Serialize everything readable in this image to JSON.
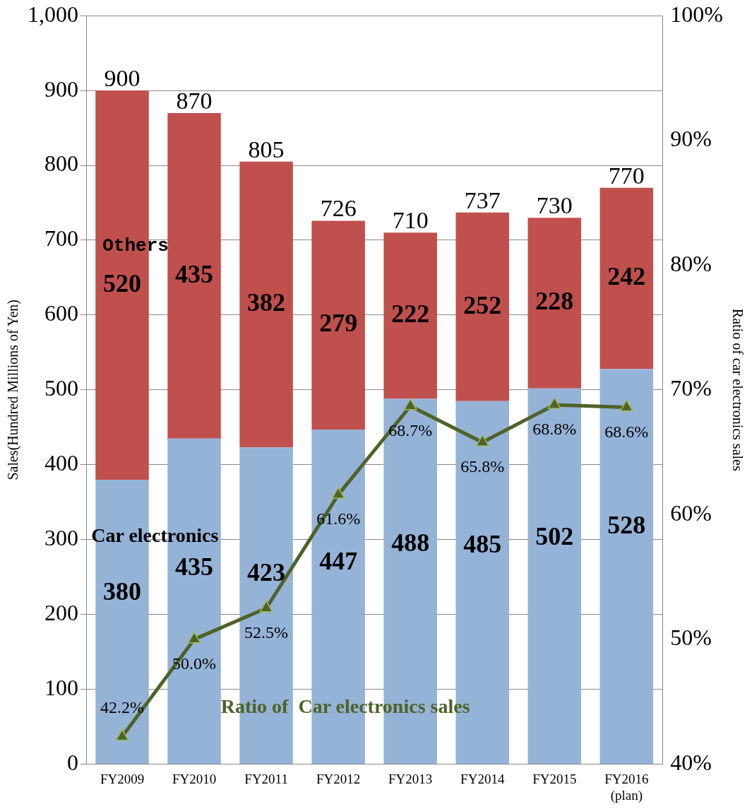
{
  "chart_data": {
    "type": "bar",
    "stacked": true,
    "ylabel": "Sales(Hundred Millions of Yen)",
    "y2label": "Ratio of car electronics sales",
    "categories": [
      "FY2009",
      "FY2010",
      "FY2011",
      "FY2012",
      "FY2013",
      "FY2014",
      "FY2015",
      "FY2016\n(plan)"
    ],
    "series": [
      {
        "name": "Car electronics",
        "color": "#95b3d7",
        "values": [
          380,
          435,
          423,
          447,
          488,
          485,
          502,
          528
        ],
        "value_labels": [
          "380",
          "435",
          "423",
          "447",
          "488",
          "485",
          "502",
          "528"
        ]
      },
      {
        "name": "Others",
        "color": "#c0504d",
        "values": [
          520,
          435,
          382,
          279,
          222,
          252,
          228,
          242
        ],
        "value_labels": [
          "520",
          "435",
          "382",
          "279",
          "222",
          "252",
          "228",
          "242"
        ]
      },
      {
        "name": "Ratio of  Car electronics sales",
        "type": "line",
        "axis": "y2",
        "color": "#4f6228",
        "marker": "triangle",
        "values": [
          42.2,
          50.0,
          52.5,
          61.6,
          68.7,
          65.8,
          68.8,
          68.6
        ],
        "value_labels": [
          "42.2%",
          "50.0%",
          "52.5%",
          "61.6%",
          "68.7%",
          "65.8%",
          "68.8%",
          "68.6%"
        ]
      }
    ],
    "totals": [
      "900",
      "870",
      "805",
      "726",
      "710",
      "737",
      "730",
      "770"
    ],
    "ylim": [
      0,
      1000
    ],
    "yticks": [
      0,
      100,
      200,
      300,
      400,
      500,
      600,
      700,
      800,
      900,
      {
        "value": 1000,
        "label": "1,000"
      }
    ],
    "y2lim": [
      40,
      100
    ],
    "y2ticks": [
      {
        "value": 40,
        "label": "40%"
      },
      {
        "value": 50,
        "label": "50%"
      },
      {
        "value": 60,
        "label": "60%"
      },
      {
        "value": 70,
        "label": "70%"
      },
      {
        "value": 80,
        "label": "80%"
      },
      {
        "value": 90,
        "label": "90%"
      },
      {
        "value": 100,
        "label": "100%"
      }
    ],
    "grid": "y",
    "legend": false
  }
}
